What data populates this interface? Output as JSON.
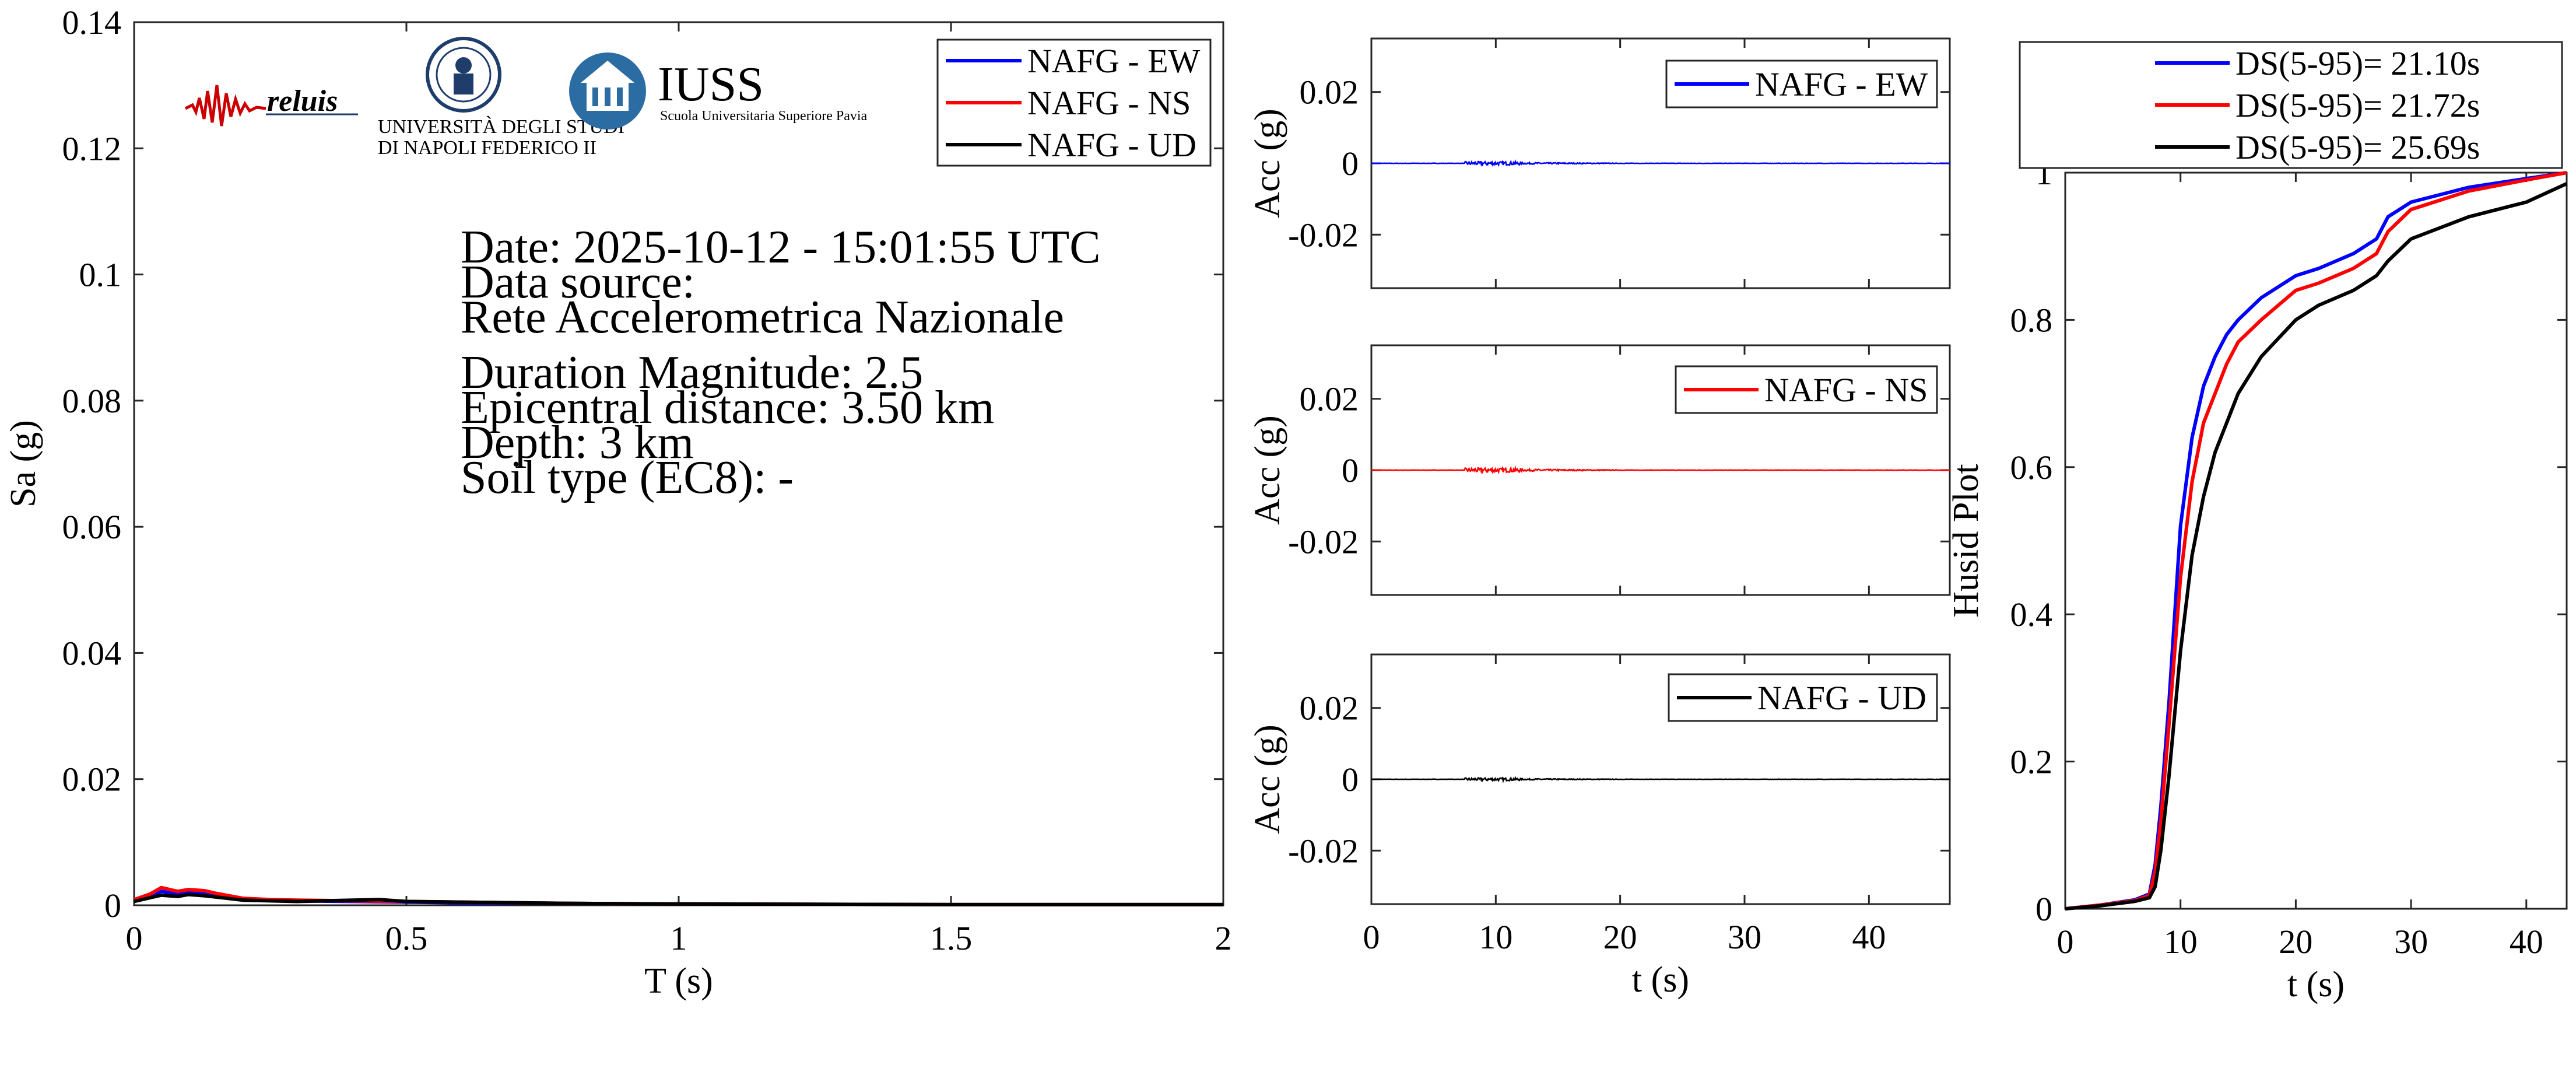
{
  "colors": {
    "ew": "#0000ff",
    "ns": "#ff0000",
    "ud": "#000000",
    "iuss": "#2b6ca3",
    "unina": "#1f3d6b"
  },
  "logos": {
    "reluis": "reluis",
    "unina_line1": "UNIVERSITÀ DEGLI STUDI",
    "unina_line2": "DI NAPOLI FEDERICO II",
    "iuss": "IUSS",
    "iuss_sub": "Scuola Universitaria Superiore Pavia"
  },
  "info": {
    "date": "Date: 2025-10-12 - 15:01:55 UTC",
    "source_label": "Data source:",
    "source_value": "Rete Accelerometrica Nazionale",
    "magnitude": "Duration Magnitude: 2.5",
    "distance": "Epicentral distance: 3.50 km",
    "depth": "Depth: 3 km",
    "soil": "Soil type (EC8): -"
  },
  "chart_data": [
    {
      "type": "line",
      "id": "spectrum",
      "xlabel": "T (s)",
      "ylabel": "Sa (g)",
      "xlim": [
        0,
        2
      ],
      "ylim": [
        0,
        0.14
      ],
      "xticks": [
        0,
        0.5,
        1,
        1.5,
        2
      ],
      "xtick_labels": [
        "0",
        "0.5",
        "1",
        "1.5",
        "2"
      ],
      "yticks": [
        0,
        0.02,
        0.04,
        0.06,
        0.08,
        0.1,
        0.12,
        0.14
      ],
      "ytick_labels": [
        "0",
        "0.02",
        "0.04",
        "0.06",
        "0.08",
        "0.1",
        "0.12",
        "0.14"
      ],
      "legend_position": "top-right",
      "series": [
        {
          "name": "NAFG - EW",
          "color": "#0000ff",
          "x": [
            0,
            0.03,
            0.05,
            0.08,
            0.1,
            0.13,
            0.15,
            0.2,
            0.25,
            0.3,
            0.4,
            0.5,
            0.6,
            0.8,
            1.0,
            1.5,
            2.0
          ],
          "y": [
            0.0008,
            0.0015,
            0.0022,
            0.0018,
            0.0021,
            0.0019,
            0.0016,
            0.0009,
            0.0008,
            0.0007,
            0.0006,
            0.0005,
            0.0004,
            0.0003,
            0.0002,
            0.0001,
            0.0001
          ]
        },
        {
          "name": "NAFG - NS",
          "color": "#ff0000",
          "x": [
            0,
            0.03,
            0.05,
            0.08,
            0.1,
            0.13,
            0.15,
            0.2,
            0.25,
            0.3,
            0.4,
            0.5,
            0.6,
            0.8,
            1.0,
            1.5,
            2.0
          ],
          "y": [
            0.0009,
            0.0018,
            0.0028,
            0.0022,
            0.0025,
            0.0023,
            0.0019,
            0.0011,
            0.0009,
            0.0008,
            0.0007,
            0.0006,
            0.0005,
            0.0003,
            0.0002,
            0.0001,
            0.0001
          ]
        },
        {
          "name": "NAFG - UD",
          "color": "#000000",
          "x": [
            0,
            0.03,
            0.05,
            0.08,
            0.1,
            0.13,
            0.15,
            0.2,
            0.25,
            0.3,
            0.4,
            0.45,
            0.5,
            0.6,
            0.8,
            1.0,
            1.5,
            2.0
          ],
          "y": [
            0.0006,
            0.0012,
            0.0016,
            0.0014,
            0.0017,
            0.0015,
            0.0013,
            0.0008,
            0.0007,
            0.0006,
            0.0008,
            0.0009,
            0.0006,
            0.0005,
            0.0003,
            0.0002,
            0.0001,
            0.0001
          ]
        }
      ]
    },
    {
      "type": "line",
      "id": "acc_ew",
      "xlabel": "",
      "ylabel": "Acc (g)",
      "xlim": [
        0,
        46.5
      ],
      "ylim": [
        -0.035,
        0.035
      ],
      "xticks": [
        0,
        10,
        20,
        30,
        40
      ],
      "xtick_labels": [],
      "yticks": [
        0.02,
        0,
        -0.02
      ],
      "ytick_labels": [
        "0.02",
        "0",
        "-0.02"
      ],
      "legend_position": "top-right",
      "series": [
        {
          "name": "NAFG - EW",
          "color": "#0000ff",
          "peak_abs": 0.0005,
          "strong_motion_window": [
            7.5,
            12
          ]
        }
      ]
    },
    {
      "type": "line",
      "id": "acc_ns",
      "xlabel": "",
      "ylabel": "Acc (g)",
      "xlim": [
        0,
        46.5
      ],
      "ylim": [
        -0.035,
        0.035
      ],
      "xticks": [
        0,
        10,
        20,
        30,
        40
      ],
      "xtick_labels": [],
      "yticks": [
        0.02,
        0,
        -0.02
      ],
      "ytick_labels": [
        "0.02",
        "0",
        "-0.02"
      ],
      "legend_position": "top-right",
      "series": [
        {
          "name": "NAFG - NS",
          "color": "#ff0000",
          "peak_abs": 0.0006,
          "strong_motion_window": [
            7.5,
            12
          ]
        }
      ]
    },
    {
      "type": "line",
      "id": "acc_ud",
      "xlabel": "t (s)",
      "ylabel": "Acc (g)",
      "xlim": [
        0,
        46.5
      ],
      "ylim": [
        -0.035,
        0.035
      ],
      "xticks": [
        0,
        10,
        20,
        30,
        40
      ],
      "xtick_labels": [
        "0",
        "10",
        "20",
        "30",
        "40"
      ],
      "yticks": [
        0.02,
        0,
        -0.02
      ],
      "ytick_labels": [
        "0.02",
        "0",
        "-0.02"
      ],
      "legend_position": "top-right",
      "series": [
        {
          "name": "NAFG - UD",
          "color": "#000000",
          "peak_abs": 0.0004,
          "strong_motion_window": [
            7.5,
            12
          ]
        }
      ]
    },
    {
      "type": "line",
      "id": "husid",
      "xlabel": "t (s)",
      "ylabel": "Husid Plot",
      "xlim": [
        0,
        43.5
      ],
      "ylim": [
        0,
        1
      ],
      "xticks": [
        0,
        10,
        20,
        30,
        40
      ],
      "xtick_labels": [
        "0",
        "10",
        "20",
        "30",
        "40"
      ],
      "yticks": [
        0,
        0.2,
        0.4,
        0.6,
        0.8,
        1
      ],
      "ytick_labels": [
        "0",
        "0.2",
        "0.4",
        "0.6",
        "0.8",
        "1"
      ],
      "legend_position": "top-outside",
      "series": [
        {
          "name": "DS(5-95)= 21.10s",
          "color": "#0000ff",
          "x": [
            0,
            3,
            6,
            7.3,
            7.8,
            8.3,
            9,
            10,
            11,
            12,
            13,
            14,
            15,
            17,
            20,
            22,
            25,
            27,
            28,
            30,
            35,
            40,
            43.5
          ],
          "y": [
            0,
            0.005,
            0.012,
            0.02,
            0.06,
            0.14,
            0.28,
            0.52,
            0.64,
            0.71,
            0.75,
            0.78,
            0.8,
            0.83,
            0.86,
            0.87,
            0.89,
            0.91,
            0.94,
            0.96,
            0.98,
            0.992,
            1.0
          ]
        },
        {
          "name": "DS(5-95)= 21.72s",
          "color": "#ff0000",
          "x": [
            0,
            3,
            6,
            7.3,
            7.8,
            8.3,
            9,
            10,
            11,
            12,
            13,
            14,
            15,
            17,
            20,
            22,
            25,
            27,
            28,
            30,
            35,
            40,
            43.5
          ],
          "y": [
            0,
            0.005,
            0.011,
            0.018,
            0.05,
            0.12,
            0.25,
            0.45,
            0.58,
            0.66,
            0.7,
            0.74,
            0.77,
            0.8,
            0.84,
            0.85,
            0.87,
            0.89,
            0.92,
            0.95,
            0.975,
            0.99,
            1.0
          ]
        },
        {
          "name": "DS(5-95)= 25.69s",
          "color": "#000000",
          "x": [
            0,
            3,
            6,
            7.3,
            7.8,
            8.3,
            9,
            10,
            11,
            12,
            13,
            14,
            15,
            17,
            20,
            22,
            25,
            27,
            28,
            30,
            35,
            40,
            43.5
          ],
          "y": [
            0,
            0.004,
            0.01,
            0.015,
            0.03,
            0.08,
            0.18,
            0.35,
            0.48,
            0.56,
            0.62,
            0.66,
            0.7,
            0.75,
            0.8,
            0.82,
            0.84,
            0.86,
            0.88,
            0.91,
            0.94,
            0.96,
            0.985
          ]
        }
      ]
    }
  ]
}
